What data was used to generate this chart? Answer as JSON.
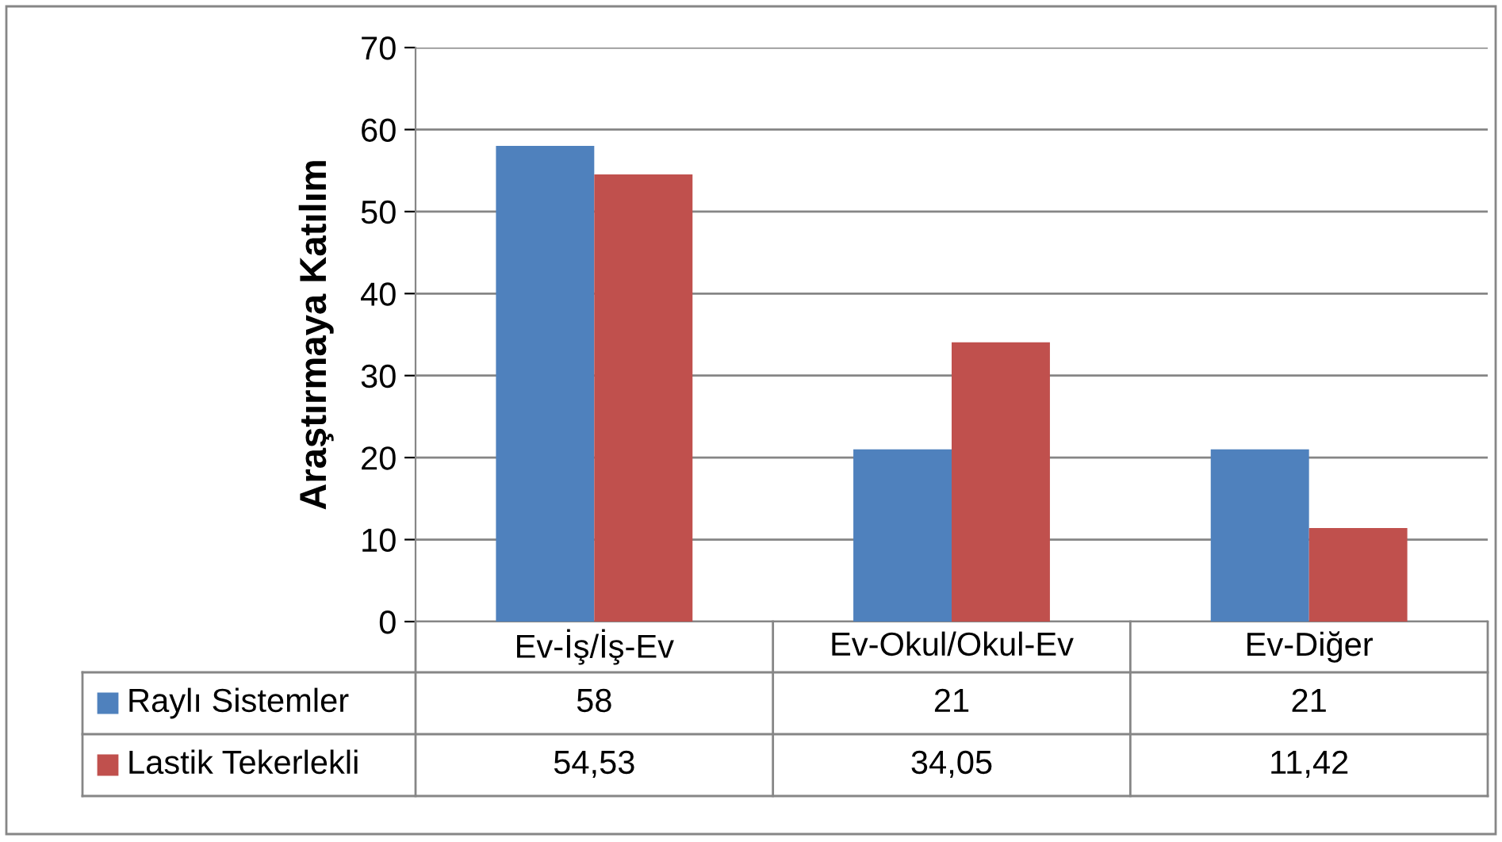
{
  "chart_data": {
    "type": "bar",
    "ylabel": "Araştırmaya Katılım",
    "categories": [
      "Ev-İş/İş-Ev",
      "Ev-Okul/Okul-Ev",
      "Ev-Diğer"
    ],
    "series": [
      {
        "name": "Raylı Sistemler",
        "color": "#4f81bd",
        "values": [
          58,
          21,
          21
        ],
        "value_labels": [
          "58",
          "21",
          "21"
        ]
      },
      {
        "name": "Lastik Tekerlekli",
        "color": "#c0504d",
        "values": [
          54.53,
          34.05,
          11.42
        ],
        "value_labels": [
          "54,53",
          "34,05",
          "11,42"
        ]
      }
    ],
    "ylim": [
      0,
      70
    ],
    "yticks": [
      0,
      10,
      20,
      30,
      40,
      50,
      60,
      70
    ],
    "grid": "y",
    "legend": "bottom"
  }
}
